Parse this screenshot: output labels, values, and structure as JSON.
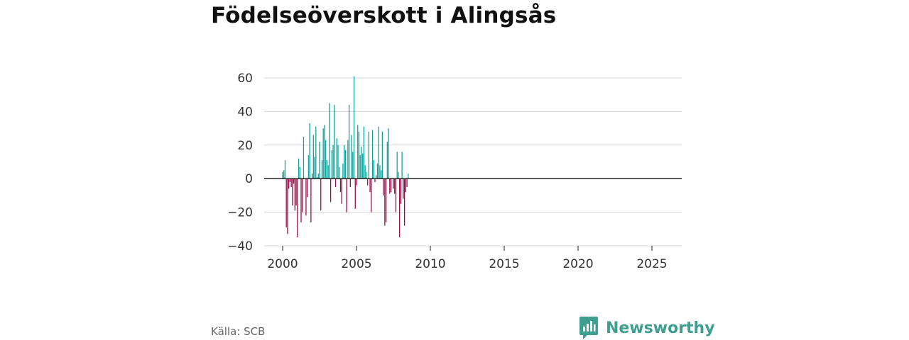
{
  "title": "Födelseöverskott i Alingsås",
  "source": "Källa: SCB",
  "brand": {
    "name": "Newsworthy",
    "icon": "bar-chart-logo-icon",
    "color": "#3e9e90"
  },
  "colors": {
    "positive": "#14a19b",
    "negative": "#9b0b48",
    "grid": "#dddddd",
    "zero": "#333333"
  },
  "chart_data": {
    "type": "bar",
    "title": "Födelseöverskott i Alingsås",
    "xlabel": "",
    "ylabel": "",
    "ylim": [
      -40,
      65
    ],
    "xlim": [
      1998.8,
      2027.5
    ],
    "y_ticks": [
      -40,
      -20,
      0,
      20,
      40,
      60
    ],
    "y_tick_labels": [
      "−40",
      "−20",
      "0",
      "20",
      "40",
      "60"
    ],
    "x_ticks": [
      2000,
      2005,
      2010,
      2015,
      2020,
      2025
    ],
    "x_tick_labels": [
      "2000",
      "2005",
      "2010",
      "2015",
      "2020",
      "2025"
    ],
    "grid": true,
    "frequency": "monthly",
    "start": "2000-01",
    "values": [
      4,
      5,
      11,
      -29,
      -33,
      -6,
      -2,
      -5,
      -16,
      -3,
      -19,
      -16,
      -35,
      12,
      7,
      -26,
      -20,
      25,
      0,
      -22,
      -11,
      14,
      33,
      -26,
      3,
      26,
      13,
      31,
      1,
      3,
      22,
      -19,
      11,
      30,
      32,
      23,
      11,
      8,
      45,
      -14,
      17,
      20,
      44,
      -5,
      24,
      20,
      7,
      -8,
      -15,
      9,
      20,
      17,
      -20,
      23,
      44,
      -5,
      26,
      16,
      61,
      -18,
      -4,
      32,
      28,
      14,
      19,
      15,
      31,
      8,
      4,
      -4,
      28,
      -8,
      -20,
      29,
      11,
      -2,
      2,
      9,
      31,
      8,
      5,
      28,
      -10,
      -28,
      -26,
      22,
      30,
      -9,
      -8,
      0,
      -6,
      -9,
      -20,
      16,
      4,
      -35,
      -15,
      16,
      -12,
      -28,
      -8,
      -5,
      3
    ]
  }
}
